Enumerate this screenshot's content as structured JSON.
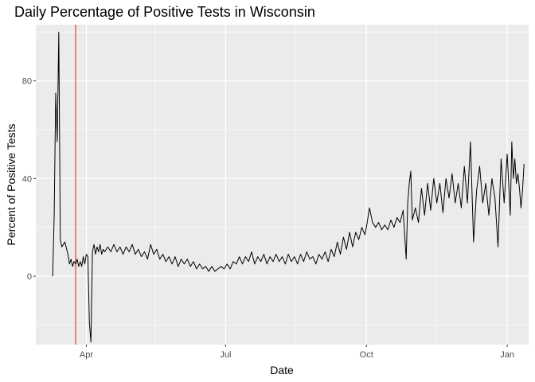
{
  "chart_data": {
    "type": "line",
    "title": "Daily Percentage of Positive Tests in Wisconsin",
    "xlabel": "Date",
    "ylabel": "Percent of Positive Tests",
    "x_range": [
      "2020-02-28",
      "2021-01-15"
    ],
    "ylim": [
      -28,
      103
    ],
    "x_ticks": [
      {
        "date": "2020-04-01",
        "label": "Apr"
      },
      {
        "date": "2020-07-01",
        "label": "Jul"
      },
      {
        "date": "2020-10-01",
        "label": "Oct"
      },
      {
        "date": "2021-01-01",
        "label": "Jan"
      }
    ],
    "x_minor_ticks": [
      "2020-05-16",
      "2020-08-16",
      "2020-11-16"
    ],
    "y_ticks": [
      0,
      40,
      80
    ],
    "y_minor_ticks": [
      -20,
      20,
      60,
      100
    ],
    "grid": true,
    "reference_line": {
      "date": "2020-03-25",
      "color": "#e41a1c"
    },
    "series": [
      {
        "color": "#000000",
        "points": [
          [
            "2020-03-10",
            0
          ],
          [
            "2020-03-11",
            25
          ],
          [
            "2020-03-12",
            75
          ],
          [
            "2020-03-13",
            55
          ],
          [
            "2020-03-14",
            100
          ],
          [
            "2020-03-15",
            15
          ],
          [
            "2020-03-16",
            12
          ],
          [
            "2020-03-17",
            13
          ],
          [
            "2020-03-18",
            14
          ],
          [
            "2020-03-20",
            9
          ],
          [
            "2020-03-21",
            5
          ],
          [
            "2020-03-22",
            7
          ],
          [
            "2020-03-23",
            4
          ],
          [
            "2020-03-24",
            6
          ],
          [
            "2020-03-25",
            5
          ],
          [
            "2020-03-26",
            7
          ],
          [
            "2020-03-27",
            4
          ],
          [
            "2020-03-28",
            6
          ],
          [
            "2020-03-29",
            4
          ],
          [
            "2020-03-30",
            8
          ],
          [
            "2020-03-31",
            5
          ],
          [
            "2020-04-01",
            9
          ],
          [
            "2020-04-02",
            8
          ],
          [
            "2020-04-03",
            -19
          ],
          [
            "2020-04-04",
            -27
          ],
          [
            "2020-04-05",
            10
          ],
          [
            "2020-04-06",
            13
          ],
          [
            "2020-04-07",
            9
          ],
          [
            "2020-04-08",
            12
          ],
          [
            "2020-04-09",
            10
          ],
          [
            "2020-04-10",
            13
          ],
          [
            "2020-04-11",
            9
          ],
          [
            "2020-04-12",
            11
          ],
          [
            "2020-04-13",
            10
          ],
          [
            "2020-04-15",
            12
          ],
          [
            "2020-04-17",
            10
          ],
          [
            "2020-04-19",
            13
          ],
          [
            "2020-04-21",
            10
          ],
          [
            "2020-04-23",
            12
          ],
          [
            "2020-04-25",
            9
          ],
          [
            "2020-04-27",
            12
          ],
          [
            "2020-04-29",
            10
          ],
          [
            "2020-05-01",
            13
          ],
          [
            "2020-05-03",
            9
          ],
          [
            "2020-05-05",
            11
          ],
          [
            "2020-05-07",
            8
          ],
          [
            "2020-05-09",
            10
          ],
          [
            "2020-05-11",
            7
          ],
          [
            "2020-05-13",
            13
          ],
          [
            "2020-05-15",
            9
          ],
          [
            "2020-05-17",
            11
          ],
          [
            "2020-05-19",
            7
          ],
          [
            "2020-05-21",
            9
          ],
          [
            "2020-05-23",
            6
          ],
          [
            "2020-05-25",
            8
          ],
          [
            "2020-05-27",
            5
          ],
          [
            "2020-05-29",
            8
          ],
          [
            "2020-05-31",
            4
          ],
          [
            "2020-06-02",
            7
          ],
          [
            "2020-06-04",
            5
          ],
          [
            "2020-06-06",
            7
          ],
          [
            "2020-06-08",
            4
          ],
          [
            "2020-06-10",
            6
          ],
          [
            "2020-06-12",
            3
          ],
          [
            "2020-06-14",
            5
          ],
          [
            "2020-06-16",
            3
          ],
          [
            "2020-06-18",
            4
          ],
          [
            "2020-06-20",
            2
          ],
          [
            "2020-06-22",
            4
          ],
          [
            "2020-06-24",
            2
          ],
          [
            "2020-06-26",
            3
          ],
          [
            "2020-06-28",
            4
          ],
          [
            "2020-06-30",
            3
          ],
          [
            "2020-07-02",
            5
          ],
          [
            "2020-07-04",
            3
          ],
          [
            "2020-07-06",
            6
          ],
          [
            "2020-07-08",
            5
          ],
          [
            "2020-07-10",
            8
          ],
          [
            "2020-07-12",
            5
          ],
          [
            "2020-07-14",
            8
          ],
          [
            "2020-07-16",
            6
          ],
          [
            "2020-07-18",
            10
          ],
          [
            "2020-07-20",
            5
          ],
          [
            "2020-07-22",
            8
          ],
          [
            "2020-07-24",
            6
          ],
          [
            "2020-07-26",
            9
          ],
          [
            "2020-07-28",
            5
          ],
          [
            "2020-07-30",
            8
          ],
          [
            "2020-08-01",
            6
          ],
          [
            "2020-08-03",
            9
          ],
          [
            "2020-08-05",
            6
          ],
          [
            "2020-08-07",
            8
          ],
          [
            "2020-08-09",
            5
          ],
          [
            "2020-08-11",
            9
          ],
          [
            "2020-08-13",
            6
          ],
          [
            "2020-08-15",
            8
          ],
          [
            "2020-08-17",
            5
          ],
          [
            "2020-08-19",
            9
          ],
          [
            "2020-08-21",
            6
          ],
          [
            "2020-08-23",
            10
          ],
          [
            "2020-08-25",
            7
          ],
          [
            "2020-08-27",
            8
          ],
          [
            "2020-08-29",
            5
          ],
          [
            "2020-08-31",
            9
          ],
          [
            "2020-09-02",
            7
          ],
          [
            "2020-09-04",
            10
          ],
          [
            "2020-09-06",
            6
          ],
          [
            "2020-09-08",
            11
          ],
          [
            "2020-09-10",
            8
          ],
          [
            "2020-09-12",
            14
          ],
          [
            "2020-09-14",
            9
          ],
          [
            "2020-09-16",
            16
          ],
          [
            "2020-09-18",
            11
          ],
          [
            "2020-09-20",
            18
          ],
          [
            "2020-09-22",
            12
          ],
          [
            "2020-09-24",
            18
          ],
          [
            "2020-09-26",
            15
          ],
          [
            "2020-09-28",
            20
          ],
          [
            "2020-09-30",
            17
          ],
          [
            "2020-10-01",
            20
          ],
          [
            "2020-10-03",
            28
          ],
          [
            "2020-10-05",
            22
          ],
          [
            "2020-10-07",
            20
          ],
          [
            "2020-10-09",
            22
          ],
          [
            "2020-10-11",
            19
          ],
          [
            "2020-10-13",
            21
          ],
          [
            "2020-10-15",
            19
          ],
          [
            "2020-10-17",
            23
          ],
          [
            "2020-10-19",
            20
          ],
          [
            "2020-10-21",
            24
          ],
          [
            "2020-10-23",
            22
          ],
          [
            "2020-10-25",
            27
          ],
          [
            "2020-10-27",
            7
          ],
          [
            "2020-10-28",
            30
          ],
          [
            "2020-10-29",
            38
          ],
          [
            "2020-10-30",
            43
          ],
          [
            "2020-10-31",
            23
          ],
          [
            "2020-11-02",
            28
          ],
          [
            "2020-11-04",
            22
          ],
          [
            "2020-11-06",
            36
          ],
          [
            "2020-11-08",
            25
          ],
          [
            "2020-11-10",
            38
          ],
          [
            "2020-11-12",
            27
          ],
          [
            "2020-11-14",
            40
          ],
          [
            "2020-11-16",
            30
          ],
          [
            "2020-11-18",
            38
          ],
          [
            "2020-11-20",
            26
          ],
          [
            "2020-11-22",
            40
          ],
          [
            "2020-11-24",
            32
          ],
          [
            "2020-11-26",
            42
          ],
          [
            "2020-11-28",
            30
          ],
          [
            "2020-11-30",
            38
          ],
          [
            "2020-12-02",
            28
          ],
          [
            "2020-12-04",
            45
          ],
          [
            "2020-12-06",
            30
          ],
          [
            "2020-12-08",
            55
          ],
          [
            "2020-12-10",
            14
          ],
          [
            "2020-12-12",
            35
          ],
          [
            "2020-12-14",
            45
          ],
          [
            "2020-12-16",
            30
          ],
          [
            "2020-12-18",
            38
          ],
          [
            "2020-12-20",
            25
          ],
          [
            "2020-12-22",
            40
          ],
          [
            "2020-12-24",
            32
          ],
          [
            "2020-12-26",
            12
          ],
          [
            "2020-12-28",
            48
          ],
          [
            "2020-12-30",
            30
          ],
          [
            "2021-01-01",
            50
          ],
          [
            "2021-01-03",
            25
          ],
          [
            "2021-01-04",
            55
          ],
          [
            "2021-01-05",
            40
          ],
          [
            "2021-01-06",
            48
          ],
          [
            "2021-01-07",
            38
          ],
          [
            "2021-01-08",
            42
          ],
          [
            "2021-01-09",
            36
          ],
          [
            "2021-01-10",
            28
          ],
          [
            "2021-01-11",
            35
          ],
          [
            "2021-01-12",
            46
          ]
        ]
      }
    ]
  }
}
